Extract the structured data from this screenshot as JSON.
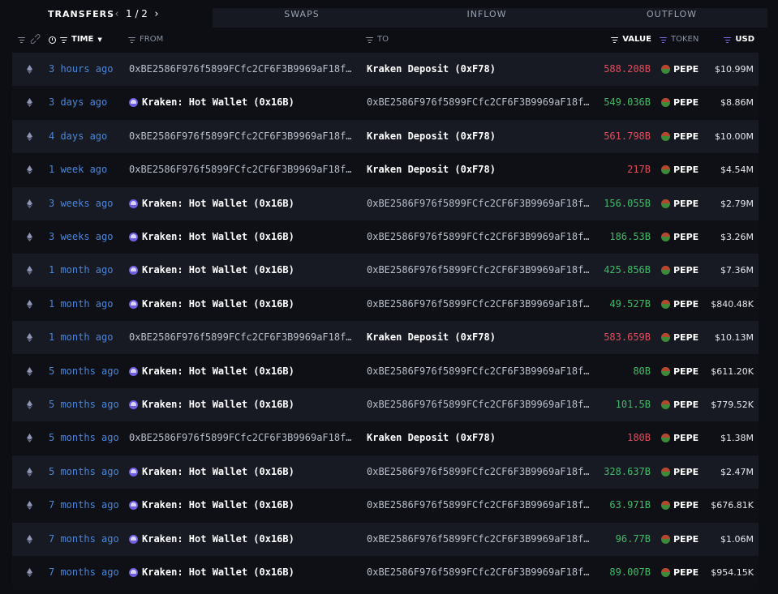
{
  "tabs": {
    "transfers": "TRANSFERS",
    "page": "1 / 2",
    "swaps": "SWAPS",
    "inflow": "INFLOW",
    "outflow": "OUTFLOW"
  },
  "columns": {
    "time": "TIME",
    "from": "FROM",
    "to": "TO",
    "value": "VALUE",
    "token": "TOKEN",
    "usd": "USD"
  },
  "colors": {
    "outflow": "#e04d5c",
    "inflow": "#42b96a",
    "time_link": "#4a86d8",
    "accent": "#7b6cf6"
  },
  "rows": [
    {
      "time": "3 hours ago",
      "from": "0xBE2586F976f5899FCfc2CF6F3B9969aF18f…",
      "from_entity": false,
      "to": "Kraken Deposit (0xF78)",
      "to_entity": true,
      "value": "588.208B",
      "direction": "out",
      "token": "PEPE",
      "usd": "$10.99M"
    },
    {
      "time": "3 days ago",
      "from": "Kraken: Hot Wallet (0x16B)",
      "from_entity": true,
      "to": "0xBE2586F976f5899FCfc2CF6F3B9969aF18f…",
      "to_entity": false,
      "value": "549.036B",
      "direction": "in",
      "token": "PEPE",
      "usd": "$8.86M"
    },
    {
      "time": "4 days ago",
      "from": "0xBE2586F976f5899FCfc2CF6F3B9969aF18f…",
      "from_entity": false,
      "to": "Kraken Deposit (0xF78)",
      "to_entity": true,
      "value": "561.798B",
      "direction": "out",
      "token": "PEPE",
      "usd": "$10.00M"
    },
    {
      "time": "1 week ago",
      "from": "0xBE2586F976f5899FCfc2CF6F3B9969aF18f…",
      "from_entity": false,
      "to": "Kraken Deposit (0xF78)",
      "to_entity": true,
      "value": "217B",
      "direction": "out",
      "token": "PEPE",
      "usd": "$4.54M"
    },
    {
      "time": "3 weeks ago",
      "from": "Kraken: Hot Wallet (0x16B)",
      "from_entity": true,
      "to": "0xBE2586F976f5899FCfc2CF6F3B9969aF18f…",
      "to_entity": false,
      "value": "156.055B",
      "direction": "in",
      "token": "PEPE",
      "usd": "$2.79M"
    },
    {
      "time": "3 weeks ago",
      "from": "Kraken: Hot Wallet (0x16B)",
      "from_entity": true,
      "to": "0xBE2586F976f5899FCfc2CF6F3B9969aF18f…",
      "to_entity": false,
      "value": "186.53B",
      "direction": "in",
      "token": "PEPE",
      "usd": "$3.26M"
    },
    {
      "time": "1 month ago",
      "from": "Kraken: Hot Wallet (0x16B)",
      "from_entity": true,
      "to": "0xBE2586F976f5899FCfc2CF6F3B9969aF18f…",
      "to_entity": false,
      "value": "425.856B",
      "direction": "in",
      "token": "PEPE",
      "usd": "$7.36M"
    },
    {
      "time": "1 month ago",
      "from": "Kraken: Hot Wallet (0x16B)",
      "from_entity": true,
      "to": "0xBE2586F976f5899FCfc2CF6F3B9969aF18f…",
      "to_entity": false,
      "value": "49.527B",
      "direction": "in",
      "token": "PEPE",
      "usd": "$840.48K"
    },
    {
      "time": "1 month ago",
      "from": "0xBE2586F976f5899FCfc2CF6F3B9969aF18f…",
      "from_entity": false,
      "to": "Kraken Deposit (0xF78)",
      "to_entity": true,
      "value": "583.659B",
      "direction": "out",
      "token": "PEPE",
      "usd": "$10.13M"
    },
    {
      "time": "5 months ago",
      "from": "Kraken: Hot Wallet (0x16B)",
      "from_entity": true,
      "to": "0xBE2586F976f5899FCfc2CF6F3B9969aF18f…",
      "to_entity": false,
      "value": "80B",
      "direction": "in",
      "token": "PEPE",
      "usd": "$611.20K"
    },
    {
      "time": "5 months ago",
      "from": "Kraken: Hot Wallet (0x16B)",
      "from_entity": true,
      "to": "0xBE2586F976f5899FCfc2CF6F3B9969aF18f…",
      "to_entity": false,
      "value": "101.5B",
      "direction": "in",
      "token": "PEPE",
      "usd": "$779.52K"
    },
    {
      "time": "5 months ago",
      "from": "0xBE2586F976f5899FCfc2CF6F3B9969aF18f…",
      "from_entity": false,
      "to": "Kraken Deposit (0xF78)",
      "to_entity": true,
      "value": "180B",
      "direction": "out",
      "token": "PEPE",
      "usd": "$1.38M"
    },
    {
      "time": "5 months ago",
      "from": "Kraken: Hot Wallet (0x16B)",
      "from_entity": true,
      "to": "0xBE2586F976f5899FCfc2CF6F3B9969aF18f…",
      "to_entity": false,
      "value": "328.637B",
      "direction": "in",
      "token": "PEPE",
      "usd": "$2.47M"
    },
    {
      "time": "7 months ago",
      "from": "Kraken: Hot Wallet (0x16B)",
      "from_entity": true,
      "to": "0xBE2586F976f5899FCfc2CF6F3B9969aF18f…",
      "to_entity": false,
      "value": "63.971B",
      "direction": "in",
      "token": "PEPE",
      "usd": "$676.81K"
    },
    {
      "time": "7 months ago",
      "from": "Kraken: Hot Wallet (0x16B)",
      "from_entity": true,
      "to": "0xBE2586F976f5899FCfc2CF6F3B9969aF18f…",
      "to_entity": false,
      "value": "96.77B",
      "direction": "in",
      "token": "PEPE",
      "usd": "$1.06M"
    },
    {
      "time": "7 months ago",
      "from": "Kraken: Hot Wallet (0x16B)",
      "from_entity": true,
      "to": "0xBE2586F976f5899FCfc2CF6F3B9969aF18f…",
      "to_entity": false,
      "value": "89.007B",
      "direction": "in",
      "token": "PEPE",
      "usd": "$954.15K"
    }
  ]
}
